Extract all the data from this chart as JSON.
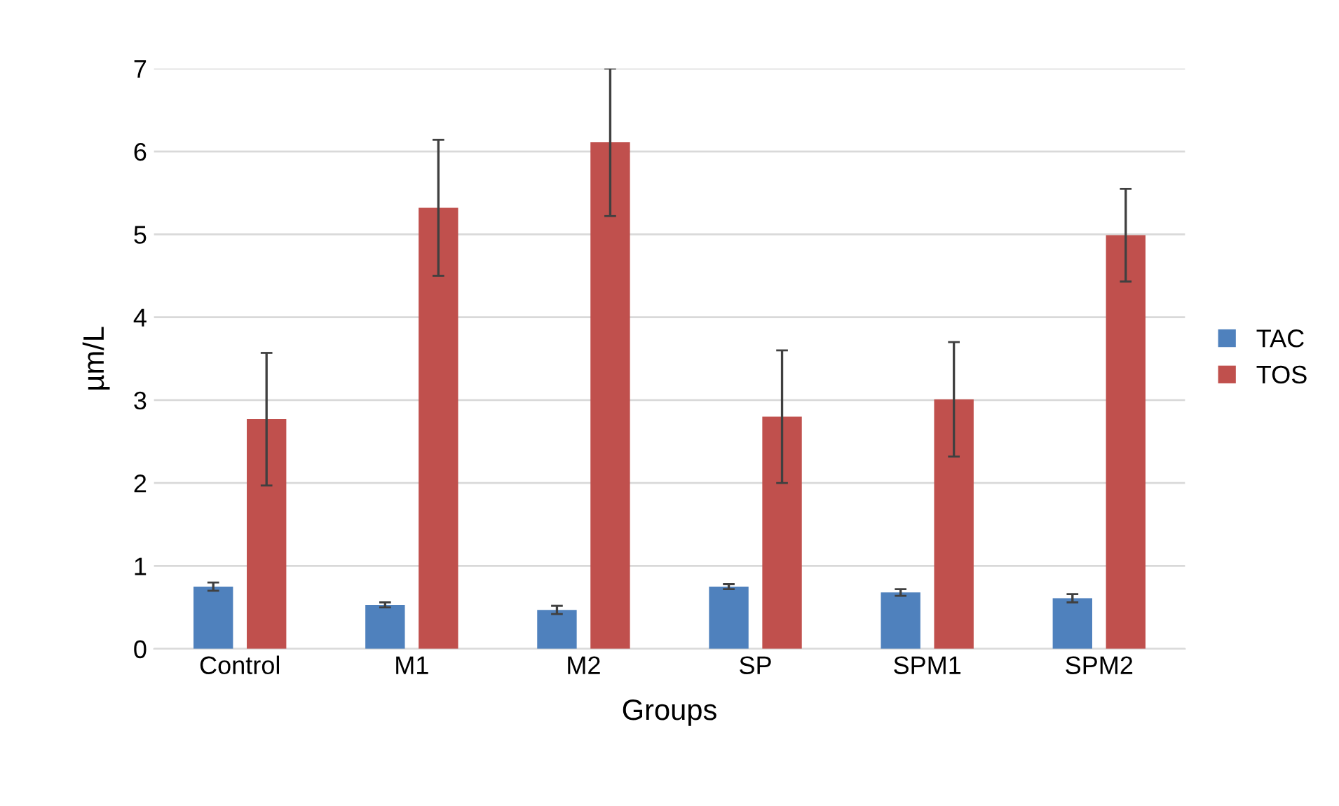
{
  "chart_data": {
    "type": "bar",
    "xlabel": "Groups",
    "ylabel": "µm/L",
    "categories": [
      "Control",
      "M1",
      "M2",
      "SP",
      "SPM1",
      "SPM2"
    ],
    "series": [
      {
        "name": "TAC",
        "color": "#4f81bd",
        "values": [
          0.75,
          0.53,
          0.47,
          0.75,
          0.68,
          0.61
        ],
        "errors": [
          0.05,
          0.03,
          0.05,
          0.03,
          0.04,
          0.05
        ]
      },
      {
        "name": "TOS",
        "color": "#c0504d",
        "values": [
          2.77,
          5.32,
          6.11,
          2.8,
          3.01,
          4.99
        ],
        "errors": [
          0.8,
          0.82,
          0.89,
          0.8,
          0.69,
          0.56
        ]
      }
    ],
    "ylim": [
      0,
      7
    ],
    "yticks": [
      0,
      1,
      2,
      3,
      4,
      5,
      6,
      7
    ],
    "grid": "y",
    "legend": "right"
  }
}
